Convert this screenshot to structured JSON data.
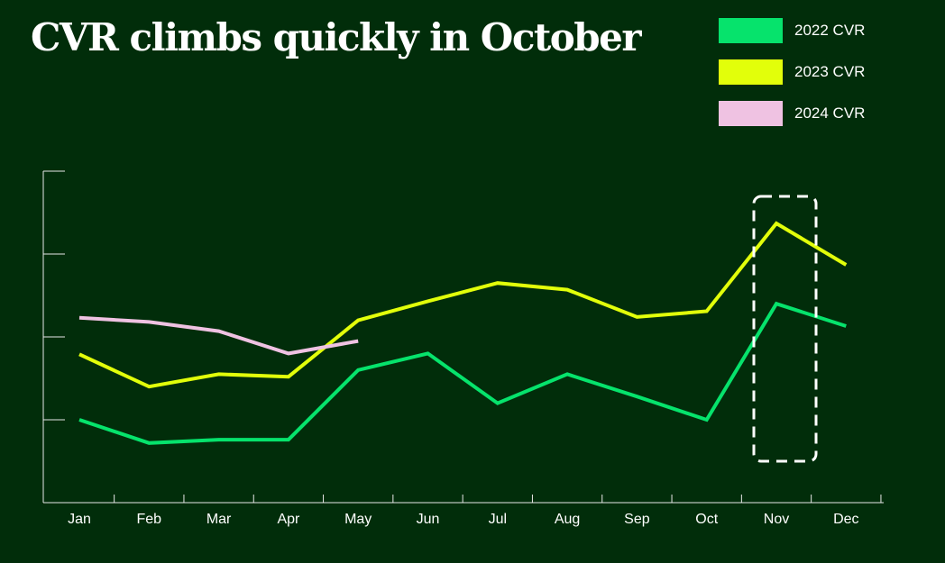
{
  "title": "CVR climbs quickly in October",
  "colors": {
    "background": "#012d0a",
    "axis": "#e8e8e8",
    "highlight_box": "#ffffff"
  },
  "legend": [
    {
      "label": "2022 CVR",
      "color": "#06e36c"
    },
    {
      "label": "2023 CVR",
      "color": "#e2ff0a"
    },
    {
      "label": "2024 CVR",
      "color": "#efc2e2"
    }
  ],
  "chart_data": {
    "type": "line",
    "title": "CVR climbs quickly in October",
    "xlabel": "",
    "ylabel": "",
    "categories": [
      "Jan",
      "Feb",
      "Mar",
      "Apr",
      "May",
      "Jun",
      "Jul",
      "Aug",
      "Sep",
      "Oct",
      "Nov",
      "Dec"
    ],
    "ylim": [
      0,
      4
    ],
    "y_ticks_labeled": false,
    "grid": false,
    "legend_position": "top-right",
    "highlight": {
      "category": "Nov",
      "style": "dashed-box"
    },
    "series": [
      {
        "name": "2022 CVR",
        "color": "#06e36c",
        "values": [
          1.0,
          0.72,
          0.76,
          0.76,
          1.6,
          1.8,
          1.2,
          1.55,
          1.28,
          1.0,
          2.4,
          2.13
        ]
      },
      {
        "name": "2023 CVR",
        "color": "#e2ff0a",
        "values": [
          1.79,
          1.4,
          1.55,
          1.52,
          2.2,
          2.43,
          2.65,
          2.57,
          2.24,
          2.31,
          3.37,
          2.87
        ]
      },
      {
        "name": "2024 CVR",
        "color": "#efc2e2",
        "values": [
          2.23,
          2.18,
          2.07,
          1.8,
          1.95,
          null,
          null,
          null,
          null,
          null,
          null,
          null
        ]
      }
    ]
  }
}
